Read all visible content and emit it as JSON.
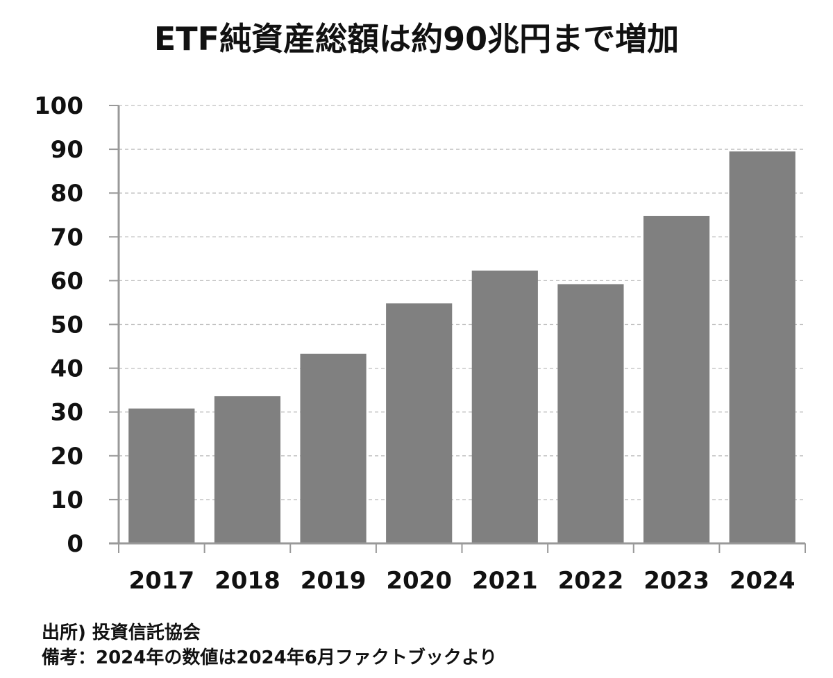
{
  "chart_data": {
    "type": "bar",
    "title": "ETF純資産総額は約90兆円まで増加",
    "categories": [
      "2017",
      "2018",
      "2019",
      "2020",
      "2021",
      "2022",
      "2023",
      "2024"
    ],
    "values": [
      30.8,
      33.6,
      43.3,
      54.8,
      62.3,
      59.2,
      74.8,
      89.5
    ],
    "ylim": [
      0,
      100
    ],
    "yticks": [
      0,
      10,
      20,
      30,
      40,
      50,
      60,
      70,
      80,
      90,
      100
    ],
    "xlabel": "",
    "ylabel": "",
    "grid": true,
    "bar_color": "#808080",
    "grid_color": "#bdbdbd"
  },
  "notes": {
    "source": "出所) 投資信託協会",
    "remark": "備考：2024年の数値は2024年6月ファクトブックより"
  }
}
